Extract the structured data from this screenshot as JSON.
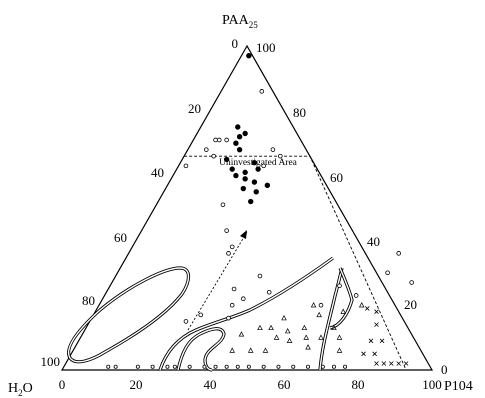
{
  "diagram": {
    "corners": {
      "top": {
        "main": "PAA",
        "sub": "25"
      },
      "left": "H",
      "left_sub": "2",
      "left_tail": "O",
      "right": "P104"
    },
    "bottom_ticks": [
      "0",
      "20",
      "40",
      "60",
      "80",
      "100"
    ],
    "left_ticks": [
      "0",
      "20",
      "40",
      "60",
      "80",
      "100"
    ],
    "right_ticks": [
      "100",
      "80",
      "60",
      "40",
      "20",
      "0"
    ],
    "annotation": "Uninvestigated Area",
    "colors": {
      "line": "#000000",
      "background": "#ffffff"
    },
    "point_groups": {
      "filled_circle": [
        [
          0.1,
          0.75
        ],
        [
          0.12,
          0.72
        ],
        [
          0.13,
          0.73
        ],
        [
          0.12,
          0.7
        ],
        [
          0.14,
          0.68
        ],
        [
          0.12,
          0.65
        ],
        [
          0.15,
          0.62
        ],
        [
          0.17,
          0.6
        ],
        [
          0.19,
          0.61
        ],
        [
          0.2,
          0.64
        ],
        [
          0.22,
          0.62
        ],
        [
          0.2,
          0.59
        ],
        [
          0.23,
          0.58
        ],
        [
          0.21,
          0.56
        ],
        [
          0.25,
          0.55
        ],
        [
          0.27,
          0.57
        ],
        [
          0.25,
          0.52
        ],
        [
          0.02,
          0.97
        ]
      ],
      "open_circle": [
        [
          0.02,
          0.63
        ],
        [
          0.08,
          0.66
        ],
        [
          0.05,
          0.68
        ],
        [
          0.06,
          0.71
        ],
        [
          0.07,
          0.71
        ],
        [
          0.09,
          0.71
        ],
        [
          0.26,
          0.66
        ],
        [
          0.18,
          0.51
        ],
        [
          0.23,
          0.43
        ],
        [
          0.27,
          0.36
        ],
        [
          0.27,
          0.38
        ],
        [
          0.34,
          0.25
        ],
        [
          0.39,
          0.29
        ],
        [
          0.44,
          0.24
        ],
        [
          0.26,
          0.15
        ],
        [
          0.29,
          0.17
        ],
        [
          0.37,
          0.16
        ],
        [
          0.36,
          0.2
        ],
        [
          0.38,
          0.22
        ],
        [
          0.6,
          0.2
        ],
        [
          0.62,
          0.26
        ],
        [
          0.68,
          0.23
        ],
        [
          0.73,
          0.3
        ],
        [
          0.73,
          0.36
        ],
        [
          0.81,
          0.27
        ],
        [
          0.11,
          0.86
        ],
        [
          0.23,
          0.68
        ],
        [
          0.23,
          0.63
        ]
      ],
      "open_triangle": [
        [
          0.43,
          0.06
        ],
        [
          0.48,
          0.06
        ],
        [
          0.52,
          0.06
        ],
        [
          0.43,
          0.11
        ],
        [
          0.47,
          0.13
        ],
        [
          0.5,
          0.13
        ],
        [
          0.52,
          0.16
        ],
        [
          0.53,
          0.1
        ],
        [
          0.55,
          0.12
        ],
        [
          0.57,
          0.09
        ],
        [
          0.59,
          0.13
        ],
        [
          0.61,
          0.1
        ],
        [
          0.63,
          0.07
        ],
        [
          0.65,
          0.1
        ],
        [
          0.67,
          0.13
        ],
        [
          0.7,
          0.1
        ],
        [
          0.72,
          0.06
        ],
        [
          0.61,
          0.17
        ],
        [
          0.67,
          0.18
        ],
        [
          0.58,
          0.2
        ],
        [
          0.71,
          0.2
        ]
      ],
      "cross": [
        [
          0.79,
          0.05
        ],
        [
          0.82,
          0.05
        ],
        [
          0.79,
          0.09
        ],
        [
          0.82,
          0.09
        ],
        [
          0.78,
          0.14
        ],
        [
          0.76,
          0.18
        ],
        [
          0.73,
          0.19
        ],
        [
          0.84,
          0.02
        ],
        [
          0.86,
          0.02
        ],
        [
          0.88,
          0.02
        ],
        [
          0.9,
          0.02
        ],
        [
          0.92,
          0.02
        ]
      ],
      "small_circle_base": [
        [
          0.12,
          0.01
        ],
        [
          0.14,
          0.01
        ],
        [
          0.2,
          0.01
        ],
        [
          0.24,
          0.01
        ],
        [
          0.28,
          0.01
        ],
        [
          0.3,
          0.01
        ],
        [
          0.34,
          0.01
        ],
        [
          0.38,
          0.01
        ],
        [
          0.41,
          0.01
        ],
        [
          0.44,
          0.01
        ],
        [
          0.47,
          0.01
        ],
        [
          0.5,
          0.01
        ],
        [
          0.54,
          0.01
        ],
        [
          0.58,
          0.01
        ],
        [
          0.62,
          0.01
        ],
        [
          0.66,
          0.01
        ],
        [
          0.7,
          0.01
        ],
        [
          0.73,
          0.01
        ],
        [
          0.76,
          0.01
        ]
      ]
    },
    "uninvestigated_boundary_paa": 0.66,
    "right_dashed_p104": [
      0.93,
      0.0
    ]
  }
}
